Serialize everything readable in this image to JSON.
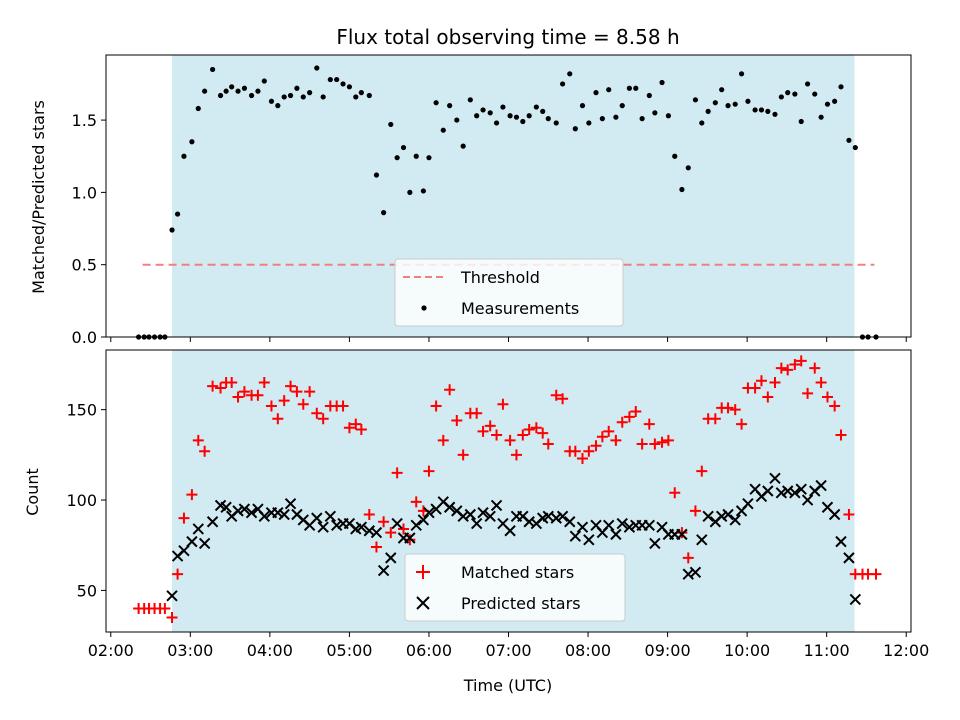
{
  "title": "Flux total observing time = 8.58 h",
  "colors": {
    "observing_span": "#add8e6",
    "threshold": "#f08080",
    "measurements": "#000000",
    "matched": "#ff0000",
    "predicted": "#000000"
  },
  "chart_data": [
    {
      "type": "scatter",
      "title": "Flux total observing time = 8.58 h",
      "xlabel": "",
      "ylabel": "Matched/Predicted stars",
      "ylim": [
        0,
        1.95
      ],
      "yticks": [
        0.0,
        0.5,
        1.0,
        1.5
      ],
      "ytick_labels": [
        "0.0",
        "0.5",
        "1.0",
        "1.5"
      ],
      "xlim": [
        1.94,
        12.06
      ],
      "observing_span": [
        2.77,
        11.35
      ],
      "legend": {
        "placement": "lower center",
        "entries": [
          "Threshold",
          "Measurements"
        ]
      },
      "series": [
        {
          "name": "Threshold",
          "kind": "line",
          "x": [
            2.4,
            11.6
          ],
          "y": [
            0.5,
            0.5
          ]
        },
        {
          "name": "Measurements",
          "kind": "points",
          "x": [
            2.35,
            2.42,
            2.48,
            2.55,
            2.62,
            2.68,
            2.77,
            2.84,
            2.92,
            3.02,
            3.1,
            3.18,
            3.28,
            3.38,
            3.45,
            3.52,
            3.6,
            3.68,
            3.77,
            3.85,
            3.93,
            4.02,
            4.1,
            4.18,
            4.26,
            4.34,
            4.42,
            4.5,
            4.59,
            4.67,
            4.76,
            4.84,
            4.92,
            5.0,
            5.08,
            5.15,
            5.25,
            5.34,
            5.43,
            5.52,
            5.6,
            5.68,
            5.76,
            5.84,
            5.93,
            6.0,
            6.09,
            6.18,
            6.26,
            6.35,
            6.43,
            6.52,
            6.6,
            6.68,
            6.77,
            6.85,
            6.93,
            7.02,
            7.1,
            7.18,
            7.26,
            7.35,
            7.43,
            7.5,
            7.6,
            7.68,
            7.77,
            7.84,
            7.93,
            8.01,
            8.1,
            8.18,
            8.26,
            8.35,
            8.43,
            8.52,
            8.6,
            8.68,
            8.77,
            8.84,
            8.93,
            9.01,
            9.09,
            9.18,
            9.26,
            9.35,
            9.43,
            9.51,
            9.6,
            9.68,
            9.76,
            9.85,
            9.93,
            10.01,
            10.1,
            10.18,
            10.26,
            10.35,
            10.43,
            10.51,
            10.6,
            10.68,
            10.76,
            10.85,
            10.93,
            11.01,
            11.1,
            11.18,
            11.28,
            11.36,
            11.45,
            11.52,
            11.62
          ],
          "y": [
            0.0,
            0.0,
            0.0,
            0.0,
            0.0,
            0.0,
            0.74,
            0.85,
            1.25,
            1.35,
            1.58,
            1.7,
            1.85,
            1.67,
            1.7,
            1.73,
            1.7,
            1.72,
            1.67,
            1.7,
            1.77,
            1.63,
            1.6,
            1.66,
            1.67,
            1.72,
            1.66,
            1.69,
            1.86,
            1.66,
            1.78,
            1.78,
            1.75,
            1.73,
            1.66,
            1.69,
            1.67,
            1.12,
            0.86,
            1.47,
            1.24,
            1.31,
            1.0,
            1.25,
            1.01,
            1.24,
            1.62,
            1.43,
            1.6,
            1.5,
            1.32,
            1.64,
            1.53,
            1.57,
            1.55,
            1.48,
            1.59,
            1.53,
            1.52,
            1.49,
            1.53,
            1.59,
            1.56,
            1.51,
            1.48,
            1.75,
            1.82,
            1.44,
            1.6,
            1.48,
            1.69,
            1.51,
            1.71,
            1.52,
            1.6,
            1.72,
            1.72,
            1.51,
            1.67,
            1.55,
            1.76,
            1.53,
            1.25,
            1.02,
            1.17,
            1.64,
            1.48,
            1.56,
            1.62,
            1.71,
            1.6,
            1.61,
            1.82,
            1.63,
            1.57,
            1.57,
            1.56,
            1.54,
            1.66,
            1.69,
            1.68,
            1.49,
            1.75,
            1.68,
            1.52,
            1.61,
            1.63,
            1.73,
            1.36,
            1.31,
            0.0,
            0.0,
            0.0
          ]
        }
      ]
    },
    {
      "type": "scatter",
      "title": "",
      "xlabel": "Time (UTC)",
      "ylabel": "Count",
      "ylim": [
        27,
        183
      ],
      "yticks": [
        50,
        100,
        150
      ],
      "ytick_labels": [
        "50",
        "100",
        "150"
      ],
      "xlim": [
        1.94,
        12.06
      ],
      "xticks": [
        2,
        3,
        4,
        5,
        6,
        7,
        8,
        9,
        10,
        11,
        12
      ],
      "xtick_labels": [
        "02:00",
        "03:00",
        "04:00",
        "05:00",
        "06:00",
        "07:00",
        "08:00",
        "09:00",
        "10:00",
        "11:00",
        "12:00"
      ],
      "observing_span": [
        2.77,
        11.35
      ],
      "legend": {
        "placement": "lower center",
        "entries": [
          "Matched stars",
          "Predicted stars"
        ]
      },
      "series": [
        {
          "name": "Matched stars",
          "marker": "plus",
          "x": [
            2.35,
            2.42,
            2.48,
            2.55,
            2.62,
            2.68,
            2.77,
            2.84,
            2.92,
            3.02,
            3.1,
            3.18,
            3.28,
            3.38,
            3.45,
            3.52,
            3.6,
            3.68,
            3.77,
            3.85,
            3.93,
            4.02,
            4.1,
            4.18,
            4.26,
            4.34,
            4.42,
            4.5,
            4.59,
            4.67,
            4.76,
            4.84,
            4.92,
            5.0,
            5.08,
            5.15,
            5.25,
            5.34,
            5.43,
            5.52,
            5.6,
            5.68,
            5.76,
            5.84,
            5.93,
            6.0,
            6.09,
            6.18,
            6.26,
            6.35,
            6.43,
            6.52,
            6.6,
            6.68,
            6.77,
            6.85,
            6.93,
            7.02,
            7.1,
            7.18,
            7.26,
            7.35,
            7.43,
            7.5,
            7.6,
            7.68,
            7.77,
            7.84,
            7.93,
            8.01,
            8.1,
            8.18,
            8.26,
            8.35,
            8.43,
            8.52,
            8.6,
            8.68,
            8.77,
            8.84,
            8.93,
            9.01,
            9.09,
            9.18,
            9.26,
            9.35,
            9.43,
            9.51,
            9.6,
            9.68,
            9.76,
            9.85,
            9.93,
            10.01,
            10.1,
            10.18,
            10.26,
            10.35,
            10.43,
            10.51,
            10.6,
            10.68,
            10.76,
            10.85,
            10.93,
            11.01,
            11.1,
            11.18,
            11.28,
            11.36,
            11.45,
            11.52,
            11.62
          ],
          "y": [
            40,
            40,
            40,
            40,
            40,
            40,
            35,
            59,
            90,
            103,
            133,
            127,
            163,
            162,
            165,
            165,
            157,
            160,
            158,
            158,
            165,
            152,
            145,
            155,
            163,
            160,
            153,
            160,
            148,
            145,
            152,
            152,
            152,
            140,
            142,
            139,
            92,
            74,
            88,
            82,
            115,
            84,
            78,
            99,
            94,
            116,
            152,
            133,
            161,
            144,
            125,
            148,
            148,
            138,
            141,
            136,
            153,
            133,
            125,
            136,
            139,
            140,
            137,
            131,
            158,
            156,
            127,
            127,
            123,
            127,
            130,
            135,
            138,
            133,
            143,
            146,
            149,
            131,
            142,
            131,
            132,
            133,
            104,
            82,
            68,
            94,
            116,
            145,
            145,
            151,
            151,
            150,
            142,
            162,
            162,
            166,
            157,
            165,
            173,
            172,
            175,
            177,
            159,
            173,
            165,
            157,
            152,
            136,
            92,
            59,
            59,
            59,
            59
          ]
        },
        {
          "name": "Predicted stars",
          "marker": "x",
          "x": [
            2.77,
            2.84,
            2.92,
            3.02,
            3.1,
            3.18,
            3.28,
            3.38,
            3.45,
            3.52,
            3.6,
            3.68,
            3.77,
            3.85,
            3.93,
            4.02,
            4.1,
            4.18,
            4.26,
            4.34,
            4.42,
            4.5,
            4.59,
            4.67,
            4.76,
            4.84,
            4.92,
            5.0,
            5.08,
            5.15,
            5.25,
            5.34,
            5.43,
            5.52,
            5.6,
            5.68,
            5.76,
            5.84,
            5.93,
            6.0,
            6.09,
            6.18,
            6.26,
            6.35,
            6.43,
            6.52,
            6.6,
            6.68,
            6.77,
            6.85,
            6.93,
            7.02,
            7.1,
            7.18,
            7.26,
            7.35,
            7.43,
            7.5,
            7.6,
            7.68,
            7.77,
            7.84,
            7.93,
            8.01,
            8.1,
            8.18,
            8.26,
            8.35,
            8.43,
            8.52,
            8.6,
            8.68,
            8.77,
            8.84,
            8.93,
            9.01,
            9.09,
            9.18,
            9.26,
            9.35,
            9.43,
            9.51,
            9.6,
            9.68,
            9.76,
            9.85,
            9.93,
            10.01,
            10.1,
            10.18,
            10.26,
            10.35,
            10.43,
            10.51,
            10.6,
            10.68,
            10.76,
            10.85,
            10.93,
            11.01,
            11.1,
            11.18,
            11.28,
            11.36
          ],
          "y": [
            47,
            69,
            72,
            77,
            84,
            76,
            88,
            97,
            96,
            91,
            94,
            95,
            93,
            95,
            91,
            93,
            93,
            92,
            98,
            92,
            89,
            86,
            90,
            85,
            91,
            86,
            87,
            87,
            84,
            85,
            83,
            82,
            61,
            68,
            87,
            79,
            79,
            86,
            89,
            93,
            95,
            99,
            96,
            94,
            91,
            92,
            87,
            93,
            91,
            97,
            87,
            83,
            91,
            91,
            88,
            87,
            90,
            91,
            90,
            91,
            88,
            80,
            85,
            78,
            86,
            82,
            86,
            81,
            87,
            85,
            86,
            86,
            86,
            76,
            85,
            81,
            81,
            81,
            59,
            60,
            78,
            91,
            88,
            91,
            92,
            89,
            94,
            98,
            106,
            102,
            105,
            112,
            104,
            105,
            104,
            106,
            100,
            105,
            108,
            96,
            92,
            77,
            68,
            45
          ]
        }
      ]
    }
  ]
}
